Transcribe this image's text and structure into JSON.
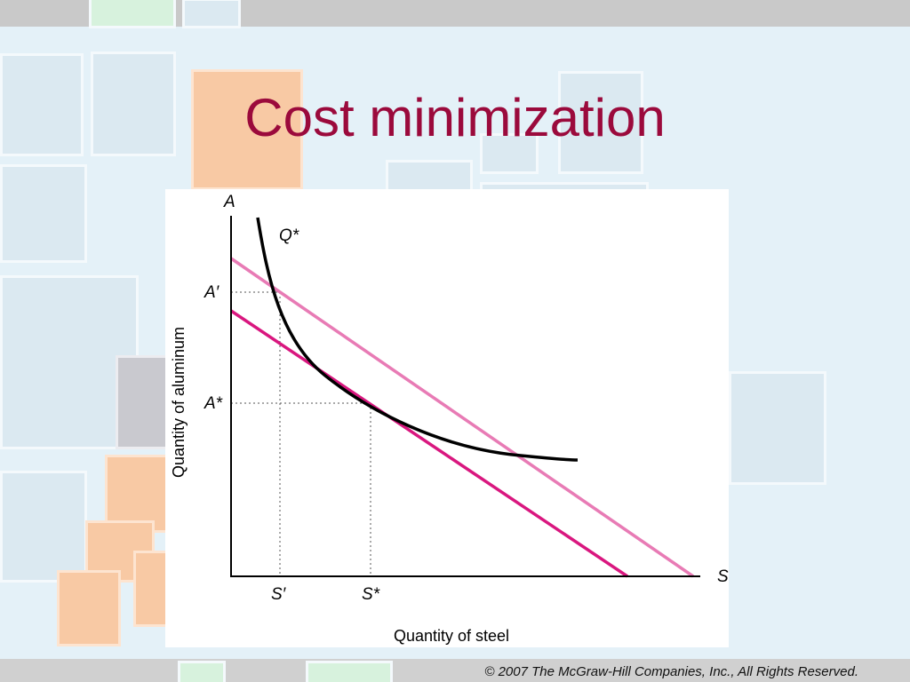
{
  "slide": {
    "title": "Cost minimization",
    "copyright": "© 2007 The McGraw-Hill Companies, Inc., All Rights Reserved."
  },
  "diagram": {
    "y_axis_letter": "A",
    "x_axis_letter": "S",
    "y_axis_label": "Quantity of aluminum",
    "x_axis_label": "Quantity of steel",
    "curve_label": "Q*",
    "y_ticks": {
      "a_prime": "A′",
      "a_star": "A*"
    },
    "x_ticks": {
      "s_prime": "S′",
      "s_star": "S*"
    },
    "colors": {
      "isoquant": "#000000",
      "higher_isocost": "#e87bb5",
      "lower_isocost": "#d9177f",
      "guides": "#555555",
      "title": "#9b0a3c"
    }
  }
}
